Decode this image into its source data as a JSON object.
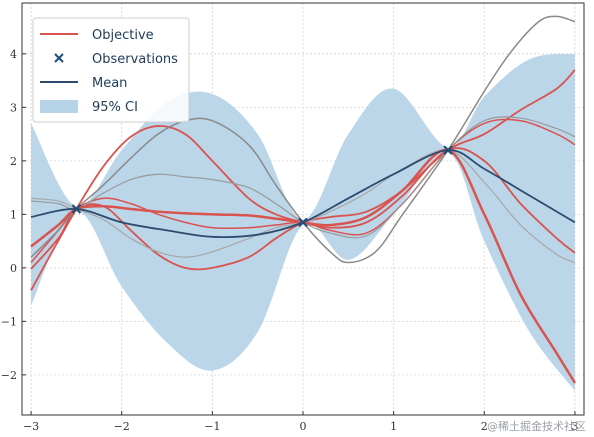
{
  "chart_data": {
    "type": "line",
    "title": "",
    "xlabel": "",
    "ylabel": "",
    "xlim": [
      -3.1,
      3.1
    ],
    "ylim": [
      -2.75,
      4.95
    ],
    "grid": true,
    "legend_position": "top-left",
    "x_ticks": [
      -3,
      -2,
      -1,
      0,
      1,
      2,
      3
    ],
    "x_tick_labels": [
      "−3",
      "−2",
      "−1",
      "0",
      "1",
      "2",
      "3"
    ],
    "y_ticks": [
      -2,
      -1,
      0,
      1,
      2,
      3,
      4
    ],
    "y_tick_labels": [
      "−2",
      "−1",
      "0",
      "1",
      "2",
      "3",
      "4"
    ],
    "legend": [
      {
        "label": "Objective",
        "kind": "line",
        "color": "#d9534f"
      },
      {
        "label": "Observations",
        "kind": "marker",
        "color": "#1f4e79"
      },
      {
        "label": "Mean",
        "kind": "line",
        "color": "#2b4c6f"
      },
      {
        "label": "95% CI",
        "kind": "patch",
        "color": "#b7d3e8"
      }
    ],
    "observations": {
      "x": [
        -2.5,
        0.0,
        1.6
      ],
      "y": [
        1.1,
        0.85,
        2.2
      ]
    },
    "mean": {
      "x": [
        -3.0,
        -2.5,
        -2.0,
        -1.5,
        -1.0,
        -0.5,
        0.0,
        0.5,
        1.0,
        1.6,
        2.0,
        2.5,
        3.0
      ],
      "y": [
        0.95,
        1.1,
        0.85,
        0.7,
        0.58,
        0.62,
        0.85,
        1.3,
        1.75,
        2.2,
        1.85,
        1.35,
        0.85
      ]
    },
    "ci_95": {
      "x": [
        -3.0,
        -2.5,
        -2.0,
        -1.5,
        -1.0,
        -0.5,
        0.0,
        0.5,
        1.0,
        1.6,
        2.0,
        2.5,
        3.0
      ],
      "lower": [
        -0.7,
        1.05,
        -0.35,
        -1.4,
        -1.92,
        -1.2,
        0.8,
        0.15,
        1.0,
        2.15,
        0.5,
        -1.2,
        -2.3
      ],
      "upper": [
        2.7,
        1.15,
        2.2,
        3.1,
        3.25,
        2.5,
        0.9,
        2.5,
        3.35,
        2.25,
        3.2,
        3.9,
        4.0
      ]
    },
    "samples": [
      {
        "color": "#d9534f",
        "width": 1.8,
        "x": [
          -3.0,
          -2.8,
          -2.5,
          -2.2,
          -1.9,
          -1.6,
          -1.3,
          -1.0,
          -0.6,
          -0.3,
          0.0,
          0.3,
          0.7,
          1.1,
          1.6,
          2.0,
          2.4,
          2.8,
          3.0
        ],
        "y": [
          -0.42,
          0.2,
          1.1,
          1.9,
          2.45,
          2.65,
          2.5,
          2.0,
          1.3,
          1.0,
          0.85,
          0.75,
          0.85,
          1.35,
          2.2,
          2.0,
          1.2,
          0.55,
          0.28
        ]
      },
      {
        "color": "#d9534f",
        "width": 1.8,
        "x": [
          -3.0,
          -2.7,
          -2.5,
          -2.2,
          -1.9,
          -1.6,
          -1.3,
          -1.0,
          -0.6,
          -0.3,
          0.0,
          0.3,
          0.7,
          1.1,
          1.6,
          2.0,
          2.4,
          2.8,
          3.0
        ],
        "y": [
          -0.02,
          0.55,
          1.1,
          1.15,
          0.7,
          0.25,
          0.0,
          0.0,
          0.2,
          0.55,
          0.85,
          0.95,
          1.05,
          1.45,
          2.2,
          2.5,
          2.95,
          3.35,
          3.7
        ]
      },
      {
        "color": "#d9534f",
        "width": 2.2,
        "x": [
          -3.0,
          -2.7,
          -2.5,
          -2.2,
          -1.9,
          -1.6,
          -1.3,
          -1.0,
          -0.6,
          -0.3,
          0.0,
          0.3,
          0.7,
          1.1,
          1.6,
          2.0,
          2.4,
          2.8,
          3.0
        ],
        "y": [
          0.4,
          0.8,
          1.1,
          1.15,
          1.1,
          1.05,
          1.02,
          1.0,
          0.98,
          0.92,
          0.85,
          0.8,
          0.95,
          1.45,
          2.2,
          1.0,
          -0.5,
          -1.6,
          -2.15
        ]
      },
      {
        "color": "#d9534f",
        "width": 1.5,
        "x": [
          -3.0,
          -2.7,
          -2.5,
          -2.2,
          -1.9,
          -1.6,
          -1.3,
          -1.0,
          -0.6,
          -0.3,
          0.0,
          0.3,
          0.7,
          1.1,
          1.6,
          2.0,
          2.4,
          2.8,
          3.0
        ],
        "y": [
          0.1,
          0.7,
          1.1,
          1.3,
          1.2,
          1.0,
          0.85,
          0.75,
          0.75,
          0.8,
          0.85,
          0.7,
          0.65,
          1.2,
          2.2,
          2.7,
          2.75,
          2.5,
          2.3
        ]
      },
      {
        "color": "#8a8a8a",
        "width": 1.5,
        "x": [
          -3.0,
          -2.7,
          -2.5,
          -2.2,
          -1.9,
          -1.6,
          -1.3,
          -1.0,
          -0.6,
          -0.3,
          0.0,
          0.3,
          0.5,
          0.8,
          1.1,
          1.6,
          2.0,
          2.3,
          2.6,
          2.8,
          3.0
        ],
        "y": [
          0.2,
          0.7,
          1.1,
          1.55,
          2.05,
          2.5,
          2.75,
          2.75,
          2.3,
          1.55,
          0.85,
          0.3,
          0.1,
          0.3,
          1.0,
          2.2,
          3.3,
          4.05,
          4.6,
          4.7,
          4.6
        ]
      },
      {
        "color": "#9a9a9a",
        "width": 1.2,
        "x": [
          -3.0,
          -2.7,
          -2.5,
          -2.2,
          -1.9,
          -1.6,
          -1.3,
          -1.0,
          -0.6,
          -0.3,
          0.0,
          0.3,
          0.7,
          1.1,
          1.6,
          2.0,
          2.4,
          2.8,
          3.0
        ],
        "y": [
          1.25,
          1.2,
          1.1,
          1.4,
          1.65,
          1.75,
          1.7,
          1.65,
          1.5,
          1.2,
          0.85,
          0.65,
          0.6,
          1.2,
          2.2,
          2.75,
          2.8,
          2.6,
          2.45
        ]
      },
      {
        "color": "#a8a8a8",
        "width": 1.2,
        "x": [
          -3.0,
          -2.7,
          -2.5,
          -2.2,
          -1.9,
          -1.6,
          -1.3,
          -1.0,
          -0.6,
          -0.3,
          0.0,
          0.3,
          0.7,
          1.1,
          1.6,
          2.0,
          2.4,
          2.8,
          3.0
        ],
        "y": [
          1.3,
          1.25,
          1.1,
          0.9,
          0.55,
          0.3,
          0.2,
          0.3,
          0.55,
          0.75,
          0.85,
          1.05,
          1.4,
          1.85,
          2.2,
          1.6,
          0.8,
          0.25,
          0.1
        ]
      }
    ],
    "objective": {
      "color": "#d9534f",
      "x": [
        -3.0,
        -2.7,
        -2.5,
        -2.2,
        -1.9,
        -1.6,
        -1.3,
        -1.0,
        -0.6,
        -0.3,
        0.0,
        0.3,
        0.7,
        1.1,
        1.6,
        2.0,
        2.4,
        2.8,
        3.0
      ],
      "y": [
        0.4,
        0.8,
        1.1,
        1.15,
        1.1,
        1.05,
        1.02,
        1.0,
        0.98,
        0.92,
        0.85,
        0.8,
        0.95,
        1.45,
        2.2,
        1.0,
        -0.5,
        -1.6,
        -2.15
      ]
    }
  },
  "watermark": "@稀土掘金技术社区",
  "colors": {
    "ci_fill": "#b7d3e8",
    "mean_line": "#2b4c6f",
    "marker": "#1f4e79",
    "grid": "#d4d4d4",
    "axes": "#333333"
  }
}
